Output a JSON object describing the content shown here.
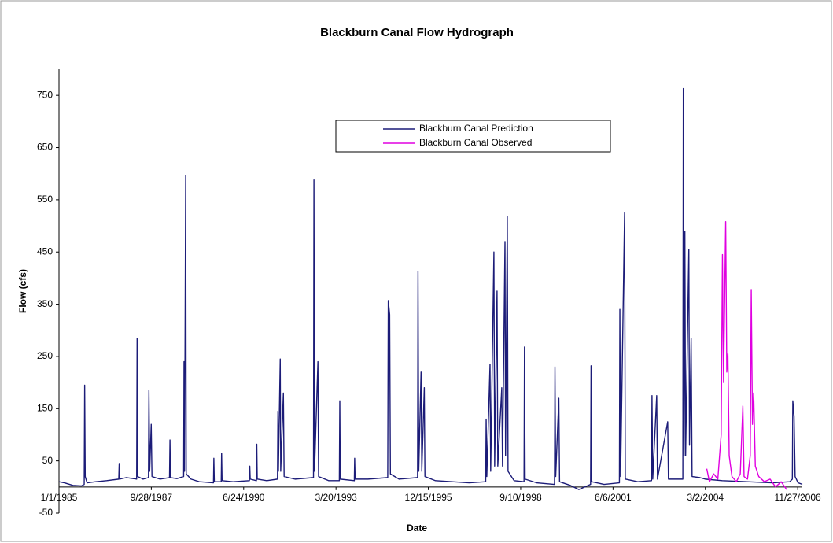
{
  "chart_data": {
    "type": "line",
    "title": "Blackburn Canal Flow Hydrograph",
    "x_label": "Date",
    "y_label": "Flow (cfs)",
    "xlim": [
      "1/1/1985",
      "1/16/2007"
    ],
    "xticks": [
      "1/1/1985",
      "9/28/1987",
      "6/24/1990",
      "3/20/1993",
      "12/15/1995",
      "9/10/1998",
      "6/6/2001",
      "3/2/2004",
      "11/27/2006"
    ],
    "ylim": [
      -50,
      800
    ],
    "yticks": [
      -50,
      50,
      150,
      250,
      350,
      450,
      550,
      650,
      750
    ],
    "grid": false,
    "legend": "top",
    "series": [
      {
        "name": "Blackburn Canal Prediction",
        "color": "#1c1c78",
        "x": [
          "1/1/1985",
          "3/1/1985",
          "6/1/1985",
          "9/1/1985",
          "10/1/1985",
          "10/6/1985",
          "10/12/1985",
          "11/1/1985",
          "2/1/1986",
          "6/1/1986",
          "10/10/1986",
          "10/15/1986",
          "10/20/1986",
          "1/1/1987",
          "4/22/1987",
          "4/27/1987",
          "5/2/1987",
          "7/1/1987",
          "8/28/1987",
          "9/2/1987",
          "9/10/1987",
          "9/27/1987",
          "10/5/1987",
          "1/1/1988",
          "4/12/1988",
          "4/17/1988",
          "4/22/1988",
          "7/1/1988",
          "9/12/1988",
          "9/16/1988",
          "9/22/1988",
          "10/4/1988",
          "10/10/1988",
          "12/1/1988",
          "3/1/1989",
          "8/1/1989",
          "8/5/1989",
          "8/10/1989",
          "10/24/1989",
          "10/28/1989",
          "11/2/1989",
          "3/1/1990",
          "8/25/1990",
          "8/29/1990",
          "9/3/1990",
          "11/9/1990",
          "11/13/1990",
          "11/18/1990",
          "3/1/1991",
          "6/25/1991",
          "6/30/1991",
          "7/5/1991",
          "7/25/1991",
          "7/30/1991",
          "8/28/1991",
          "9/5/1991",
          "1/1/1992",
          "7/19/1992",
          "7/24/1992",
          "7/30/1992",
          "9/5/1992",
          "9/12/1992",
          "1/1/1993",
          "4/25/1993",
          "4/30/1993",
          "5/5/1993",
          "10/4/1993",
          "10/8/1993",
          "10/13/1993",
          "3/1/1994",
          "10/1/1994",
          "10/7/1994",
          "10/22/1994",
          "10/30/1994",
          "2/1/1995",
          "8/20/1995",
          "8/25/1995",
          "9/2/1995",
          "9/27/1995",
          "10/5/1995",
          "11/1/1995",
          "11/8/1995",
          "3/1/1996",
          "9/1/1996",
          "3/1/1997",
          "8/27/1997",
          "9/1/1997",
          "9/8/1997",
          "10/13/1997",
          "10/20/1997",
          "11/24/1997",
          "12/2/1997",
          "12/28/1997",
          "1/5/1998",
          "2/17/1998",
          "2/25/1998",
          "3/24/1998",
          "3/30/1998",
          "4/18/1998",
          "4/26/1998",
          "7/1/1998",
          "10/16/1998",
          "10/21/1998",
          "10/28/1998",
          "3/1/1999",
          "9/11/1999",
          "9/16/1999",
          "9/24/1999",
          "10/28/1999",
          "11/5/1999",
          "3/1/2000",
          "6/1/2000",
          "10/6/2000",
          "10/11/2000",
          "10/18/2000",
          "3/1/2001",
          "8/14/2001",
          "8/19/2001",
          "8/27/2001",
          "10/9/2001",
          "10/17/2001",
          "3/1/2002",
          "7/28/2002",
          "8/2/2002",
          "8/10/2002",
          "9/22/2002",
          "9/30/2002",
          "1/19/2003",
          "1/27/2003",
          "7/2/2003",
          "7/7/2003",
          "7/15/2003",
          "7/24/2003",
          "8/1/2003",
          "9/5/2003",
          "9/12/2003",
          "9/30/2003",
          "10/10/2003",
          "1/1/2004",
          "3/1/2004",
          "9/1/2004",
          "6/1/2005",
          "3/1/2006",
          "9/1/2006",
          "9/30/2006",
          "10/5/2006",
          "10/19/2006",
          "10/30/2006",
          "12/1/2006",
          "1/16/2007"
        ],
        "values": [
          10,
          8,
          3,
          2,
          5,
          195,
          20,
          8,
          10,
          12,
          15,
          45,
          15,
          18,
          15,
          285,
          20,
          15,
          18,
          185,
          30,
          120,
          20,
          15,
          18,
          90,
          18,
          16,
          20,
          240,
          30,
          597,
          25,
          15,
          10,
          8,
          55,
          10,
          10,
          65,
          12,
          10,
          12,
          40,
          15,
          12,
          82,
          15,
          12,
          15,
          145,
          30,
          245,
          30,
          180,
          20,
          15,
          18,
          588,
          30,
          240,
          20,
          12,
          12,
          165,
          15,
          12,
          55,
          15,
          15,
          18,
          357,
          330,
          25,
          15,
          18,
          413,
          30,
          220,
          30,
          190,
          20,
          12,
          10,
          8,
          10,
          130,
          20,
          235,
          30,
          450,
          40,
          375,
          40,
          190,
          40,
          470,
          60,
          518,
          30,
          12,
          10,
          268,
          15,
          8,
          5,
          230,
          20,
          170,
          10,
          3,
          -5,
          5,
          232,
          10,
          5,
          8,
          340,
          20,
          525,
          15,
          10,
          12,
          175,
          15,
          175,
          15,
          125,
          15,
          15,
          763,
          60,
          490,
          60,
          455,
          80,
          285,
          20,
          18,
          15,
          12,
          10,
          8,
          10,
          15,
          165,
          135,
          20,
          8,
          5
        ]
      },
      {
        "name": "Blackburn Canal Observed",
        "color": "#e000e0",
        "x": [
          "3/17/2004",
          "4/15/2004",
          "6/1/2004",
          "7/15/2004",
          "8/20/2004",
          "9/3/2004",
          "9/15/2004",
          "10/8/2004",
          "10/20/2004",
          "11/1/2004",
          "11/15/2004",
          "12/15/2004",
          "2/1/2005",
          "3/15/2005",
          "4/12/2005",
          "4/25/2005",
          "6/1/2005",
          "7/1/2005",
          "7/12/2005",
          "7/25/2005",
          "8/7/2005",
          "8/25/2005",
          "10/1/2005",
          "12/1/2005",
          "2/1/2006",
          "4/1/2006",
          "6/1/2006",
          "7/30/2006"
        ],
        "values": [
          35,
          10,
          25,
          15,
          100,
          445,
          200,
          508,
          220,
          255,
          60,
          20,
          10,
          25,
          155,
          20,
          15,
          60,
          378,
          120,
          180,
          40,
          20,
          10,
          15,
          0,
          10,
          -5
        ]
      }
    ]
  }
}
